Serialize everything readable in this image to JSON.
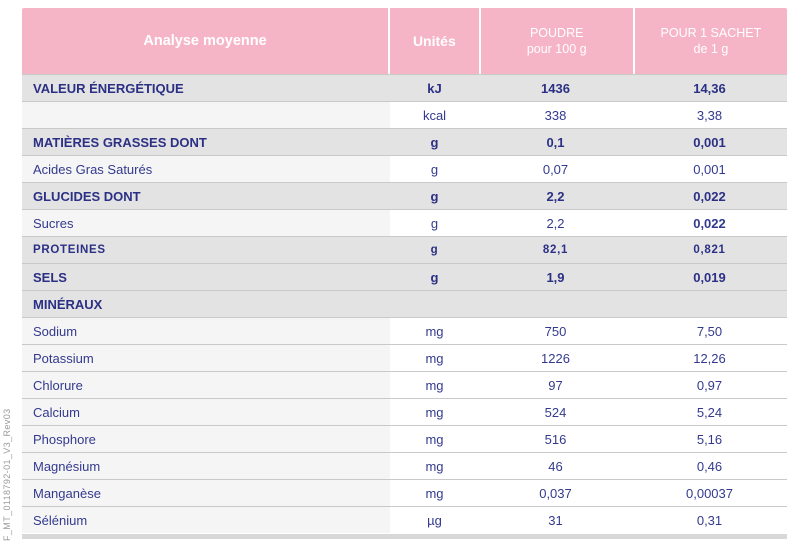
{
  "sidebar_code": "F_MT_0118792-01_V3_Rev03",
  "colors": {
    "header_pink": "#f6b5c7",
    "header_text": "#ffffff",
    "navy_bold": "#2b3084",
    "navy_regular": "#333a8e",
    "section_row_bg": "#e3e3e3",
    "sub_label_bg": "#f5f5f5",
    "separator": "#c9c9c9",
    "bottom_bar": "#d8d8d8",
    "sidebar_text": "#9a9a9a"
  },
  "table": {
    "header": {
      "analysis": "Analyse moyenne",
      "units": "Unités",
      "powder_line1": "POUDRE",
      "powder_line2": "pour 100 g",
      "sachet_line1": "POUR 1 SACHET",
      "sachet_line2": "de 1 g"
    },
    "rows": [
      {
        "label": "VALEUR ÉNERGÉTIQUE",
        "unit": "kJ",
        "per100g": "1436",
        "per_sachet": "14,36",
        "style": "section"
      },
      {
        "label": "",
        "unit": "kcal",
        "per100g": "338",
        "per_sachet": "3,38",
        "style": "sub"
      },
      {
        "label": "MATIÈRES GRASSES DONT",
        "unit": "g",
        "per100g": "0,1",
        "per_sachet": "0,001",
        "style": "section"
      },
      {
        "label": "Acides Gras Saturés",
        "unit": "g",
        "per100g": "0,07",
        "per_sachet": "0,001",
        "style": "sub"
      },
      {
        "label": "GLUCIDES DONT",
        "unit": "g",
        "per100g": "2,2",
        "per_sachet": "0,022",
        "style": "section"
      },
      {
        "label": "Sucres",
        "unit": "g",
        "per100g": "2,2",
        "per_sachet": "0,022",
        "style": "sub",
        "sachet_bold": true
      },
      {
        "label": "PROTEINES",
        "unit": "g",
        "per100g": "82,1",
        "per_sachet": "0,821",
        "style": "section_small"
      },
      {
        "label": "SELS",
        "unit": "g",
        "per100g": "1,9",
        "per_sachet": "0,019",
        "style": "section"
      },
      {
        "label": "MINÉRAUX",
        "unit": "",
        "per100g": "",
        "per_sachet": "",
        "style": "section"
      },
      {
        "label": "Sodium",
        "unit": "mg",
        "per100g": "750",
        "per_sachet": "7,50",
        "style": "sub"
      },
      {
        "label": "Potassium",
        "unit": "mg",
        "per100g": "1226",
        "per_sachet": "12,26",
        "style": "sub"
      },
      {
        "label": "Chlorure",
        "unit": "mg",
        "per100g": "97",
        "per_sachet": "0,97",
        "style": "sub"
      },
      {
        "label": "Calcium",
        "unit": "mg",
        "per100g": "524",
        "per_sachet": "5,24",
        "style": "sub"
      },
      {
        "label": "Phosphore",
        "unit": "mg",
        "per100g": "516",
        "per_sachet": "5,16",
        "style": "sub"
      },
      {
        "label": "Magnésium",
        "unit": "mg",
        "per100g": "46",
        "per_sachet": "0,46",
        "style": "sub"
      },
      {
        "label": "Manganèse",
        "unit": "mg",
        "per100g": "0,037",
        "per_sachet": "0,00037",
        "style": "sub"
      },
      {
        "label": "Sélénium",
        "unit": "µg",
        "per100g": "31",
        "per_sachet": "0,31",
        "style": "sub"
      }
    ]
  }
}
